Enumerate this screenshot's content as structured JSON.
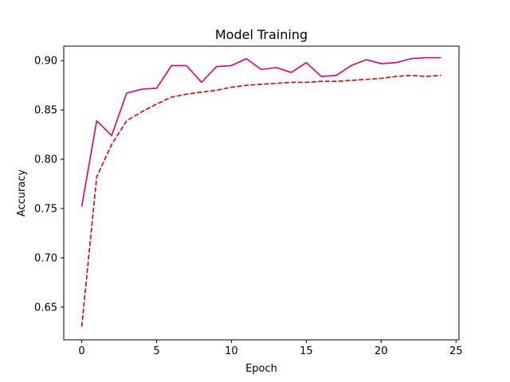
{
  "chart_data": {
    "type": "line",
    "title": "Model Training",
    "xlabel": "Epoch",
    "ylabel": "Accuracy",
    "xlim": [
      -1.2,
      25.2
    ],
    "ylim": [
      0.6168,
      0.9147
    ],
    "x_ticks": [
      0,
      5,
      10,
      15,
      20,
      25
    ],
    "y_ticks": [
      0.65,
      0.7,
      0.75,
      0.8,
      0.85,
      0.9
    ],
    "grid": false,
    "x": [
      0,
      1,
      2,
      3,
      4,
      5,
      6,
      7,
      8,
      9,
      10,
      11,
      12,
      13,
      14,
      15,
      16,
      17,
      18,
      19,
      20,
      21,
      22,
      23,
      24
    ],
    "series": [
      {
        "color": "#dd0066",
        "line_style": "solid",
        "values": [
          0.752,
          0.839,
          0.824,
          0.867,
          0.871,
          0.872,
          0.895,
          0.895,
          0.878,
          0.894,
          0.895,
          0.902,
          0.891,
          0.893,
          0.888,
          0.898,
          0.884,
          0.885,
          0.895,
          0.901,
          0.897,
          0.898,
          0.902,
          0.903,
          0.903
        ]
      },
      {
        "color": "#dd0000",
        "line_style": "dashed",
        "values": [
          0.63,
          0.782,
          0.815,
          0.839,
          0.848,
          0.856,
          0.863,
          0.866,
          0.868,
          0.87,
          0.873,
          0.875,
          0.876,
          0.877,
          0.878,
          0.878,
          0.879,
          0.879,
          0.88,
          0.881,
          0.882,
          0.884,
          0.885,
          0.884,
          0.885
        ]
      }
    ]
  }
}
